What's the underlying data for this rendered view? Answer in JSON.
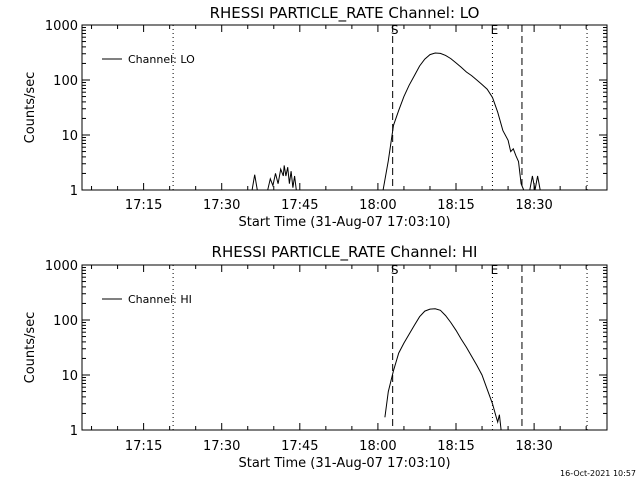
{
  "footer": {
    "timestamp": "16-Oct-2021 10:57"
  },
  "chart_data": [
    {
      "type": "line",
      "title": "RHESSI PARTICLE_RATE Channel: LO",
      "xlabel": "Start Time (31-Aug-07 17:03:10)",
      "ylabel": "Counts/sec",
      "yscale": "log",
      "ylim": [
        1,
        1000
      ],
      "xlim": [
        "17:03:10",
        "18:44:00"
      ],
      "x_ticks": [
        "17:15",
        "17:30",
        "17:45",
        "18:00",
        "18:15",
        "18:30"
      ],
      "y_ticks": [
        "1",
        "10",
        "100",
        "1000"
      ],
      "legend": {
        "entries": [
          "Channel: LO"
        ],
        "placement": "top-left"
      },
      "markers": [
        {
          "time": "17:20:40",
          "style": "dotted",
          "label": ""
        },
        {
          "time": "18:02:50",
          "style": "dashed",
          "label": "S"
        },
        {
          "time": "18:22:00",
          "style": "dotted",
          "label": "E"
        },
        {
          "time": "18:27:40",
          "style": "dashed",
          "label": ""
        },
        {
          "time": "18:40:10",
          "style": "dotted",
          "label": ""
        }
      ],
      "series": [
        {
          "name": "Channel: LO",
          "points": [
            [
              "17:35:50",
              1
            ],
            [
              "17:36:20",
              1.9
            ],
            [
              "17:36:50",
              1
            ],
            [
              "17:38:50",
              1
            ],
            [
              "17:39:20",
              1.6
            ],
            [
              "17:39:50",
              1.2
            ],
            [
              "17:40:20",
              2.0
            ],
            [
              "17:40:50",
              1.3
            ],
            [
              "17:41:20",
              2.4
            ],
            [
              "17:41:50",
              1.8
            ],
            [
              "17:42:00",
              2.8
            ],
            [
              "17:42:20",
              1.8
            ],
            [
              "17:42:40",
              2.6
            ],
            [
              "17:43:00",
              1.3
            ],
            [
              "17:43:20",
              2.2
            ],
            [
              "17:43:40",
              1.1
            ],
            [
              "17:44:00",
              1.8
            ],
            [
              "17:44:20",
              1
            ],
            [
              "18:01:00",
              1
            ],
            [
              "18:02:00",
              3.4
            ],
            [
              "18:03:00",
              15
            ],
            [
              "18:04:00",
              28
            ],
            [
              "18:05:00",
              50
            ],
            [
              "18:06:00",
              80
            ],
            [
              "18:07:00",
              120
            ],
            [
              "18:08:00",
              180
            ],
            [
              "18:09:00",
              240
            ],
            [
              "18:10:00",
              290
            ],
            [
              "18:11:00",
              310
            ],
            [
              "18:12:00",
              305
            ],
            [
              "18:13:00",
              280
            ],
            [
              "18:14:00",
              245
            ],
            [
              "18:15:00",
              205
            ],
            [
              "18:16:00",
              170
            ],
            [
              "18:17:00",
              140
            ],
            [
              "18:18:00",
              120
            ],
            [
              "18:19:00",
              100
            ],
            [
              "18:20:00",
              83
            ],
            [
              "18:21:00",
              68
            ],
            [
              "18:22:00",
              48
            ],
            [
              "18:23:00",
              26
            ],
            [
              "18:24:00",
              12
            ],
            [
              "18:25:00",
              8
            ],
            [
              "18:25:30",
              5
            ],
            [
              "18:26:00",
              5.6
            ],
            [
              "18:26:30",
              4.2
            ],
            [
              "18:27:00",
              3.3
            ],
            [
              "18:27:30",
              1.3
            ],
            [
              "18:28:00",
              1
            ],
            [
              "18:29:10",
              1
            ],
            [
              "18:29:40",
              1.8
            ],
            [
              "18:30:10",
              1
            ],
            [
              "18:30:40",
              1.8
            ],
            [
              "18:31:10",
              1
            ]
          ]
        }
      ]
    },
    {
      "type": "line",
      "title": "RHESSI PARTICLE_RATE Channel: HI",
      "xlabel": "Start Time (31-Aug-07 17:03:10)",
      "ylabel": "Counts/sec",
      "yscale": "log",
      "ylim": [
        1,
        1000
      ],
      "xlim": [
        "17:03:10",
        "18:44:00"
      ],
      "x_ticks": [
        "17:15",
        "17:30",
        "17:45",
        "18:00",
        "18:15",
        "18:30"
      ],
      "y_ticks": [
        "1",
        "10",
        "100",
        "1000"
      ],
      "legend": {
        "entries": [
          "Channel: HI"
        ],
        "placement": "top-left"
      },
      "markers": [
        {
          "time": "17:20:40",
          "style": "dotted",
          "label": ""
        },
        {
          "time": "18:02:50",
          "style": "dashed",
          "label": "S"
        },
        {
          "time": "18:22:00",
          "style": "dotted",
          "label": "E"
        },
        {
          "time": "18:27:40",
          "style": "dashed",
          "label": ""
        },
        {
          "time": "18:40:10",
          "style": "dotted",
          "label": ""
        }
      ],
      "series": [
        {
          "name": "Channel: HI",
          "points": [
            [
              "18:01:20",
              1.7
            ],
            [
              "18:02:00",
              5
            ],
            [
              "18:03:00",
              12
            ],
            [
              "18:04:00",
              25
            ],
            [
              "18:05:00",
              38
            ],
            [
              "18:06:00",
              55
            ],
            [
              "18:07:00",
              80
            ],
            [
              "18:08:00",
              115
            ],
            [
              "18:09:00",
              145
            ],
            [
              "18:10:00",
              158
            ],
            [
              "18:11:00",
              160
            ],
            [
              "18:12:00",
              150
            ],
            [
              "18:13:00",
              120
            ],
            [
              "18:14:00",
              90
            ],
            [
              "18:15:00",
              65
            ],
            [
              "18:16:00",
              45
            ],
            [
              "18:17:00",
              32
            ],
            [
              "18:18:00",
              22
            ],
            [
              "18:19:00",
              15
            ],
            [
              "18:20:00",
              10
            ],
            [
              "18:21:00",
              5.5
            ],
            [
              "18:22:00",
              3
            ],
            [
              "18:22:40",
              1.8
            ],
            [
              "18:23:00",
              1.4
            ],
            [
              "18:23:20",
              1.9
            ],
            [
              "18:23:40",
              1
            ]
          ]
        }
      ]
    }
  ]
}
